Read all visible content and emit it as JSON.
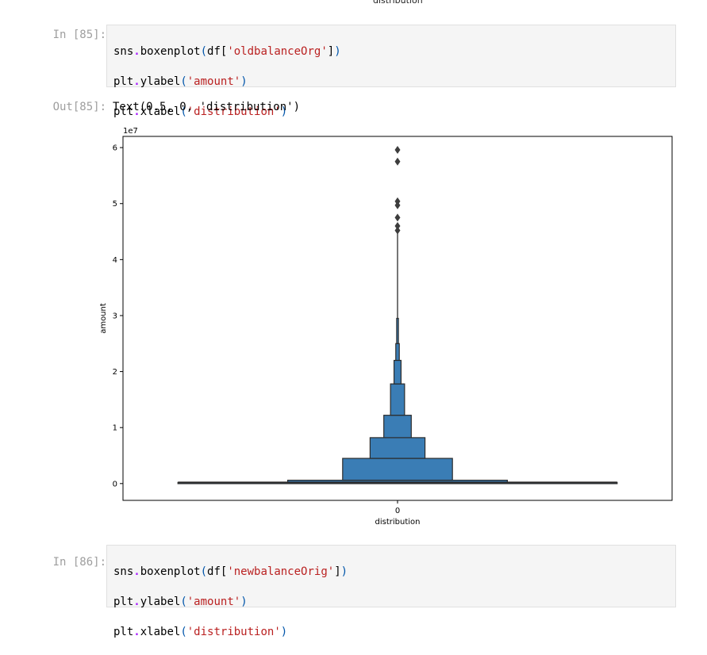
{
  "page_top_caption": "distribution",
  "cells": [
    {
      "prompt": "In [85]:",
      "lines": [
        {
          "obj": "sns",
          "op": ".",
          "fn": "boxenplot",
          "open": "(",
          "arg_pre": "df[",
          "str": "'oldbalanceOrg'",
          "arg_post": "]",
          "close": ")"
        },
        {
          "obj": "plt",
          "op": ".",
          "fn": "ylabel",
          "open": "(",
          "arg_pre": "",
          "str": "'amount'",
          "arg_post": "",
          "close": ")"
        },
        {
          "obj": "plt",
          "op": ".",
          "fn": "xlabel",
          "open": "(",
          "arg_pre": "",
          "str": "'distribution'",
          "arg_post": "",
          "close": ")"
        }
      ]
    },
    {
      "prompt": "In [86]:",
      "lines": [
        {
          "obj": "sns",
          "op": ".",
          "fn": "boxenplot",
          "open": "(",
          "arg_pre": "df[",
          "str": "'newbalanceOrig'",
          "arg_post": "]",
          "close": ")"
        },
        {
          "obj": "plt",
          "op": ".",
          "fn": "ylabel",
          "open": "(",
          "arg_pre": "",
          "str": "'amount'",
          "arg_post": "",
          "close": ")"
        },
        {
          "obj": "plt",
          "op": ".",
          "fn": "xlabel",
          "open": "(",
          "arg_pre": "",
          "str": "'distribution'",
          "arg_post": "",
          "close": ")"
        }
      ]
    }
  ],
  "output": {
    "prompt": "Out[85]:",
    "text": "Text(0.5, 0, 'distribution')"
  },
  "colors": {
    "box_fill": "#3a7db5",
    "box_edge": "#2b2b2b",
    "outlier": "#3d3d3d",
    "prompt": "#9e9e9e",
    "code_bg": "#f5f5f5",
    "string": "#ba2121",
    "operator": "#aa22ff"
  },
  "chart_data": {
    "type": "boxenplot",
    "ylabel": "amount",
    "xlabel": "distribution",
    "offset_text": "1e7",
    "x_ticks": [
      "0"
    ],
    "y_ticks": [
      0,
      1,
      2,
      3,
      4,
      5,
      6
    ],
    "ylim": [
      -0.3,
      6.2
    ],
    "grid": false,
    "levels": [
      {
        "low": 0.0,
        "high": 0.02,
        "width": 1.0
      },
      {
        "low": 0.02,
        "high": 0.06,
        "width": 0.5
      },
      {
        "low": 0.06,
        "high": 0.45,
        "width": 0.25
      },
      {
        "low": 0.45,
        "high": 0.82,
        "width": 0.125
      },
      {
        "low": 0.82,
        "high": 1.22,
        "width": 0.0625
      },
      {
        "low": 1.22,
        "high": 1.78,
        "width": 0.032
      },
      {
        "low": 1.78,
        "high": 2.2,
        "width": 0.016
      },
      {
        "low": 2.2,
        "high": 2.5,
        "width": 0.008
      },
      {
        "low": 2.5,
        "high": 2.95,
        "width": 0.004
      }
    ],
    "median": 0.02,
    "whisker_high": 4.5,
    "outliers": [
      4.52,
      4.6,
      4.75,
      4.97,
      5.04,
      5.75,
      5.96
    ]
  }
}
